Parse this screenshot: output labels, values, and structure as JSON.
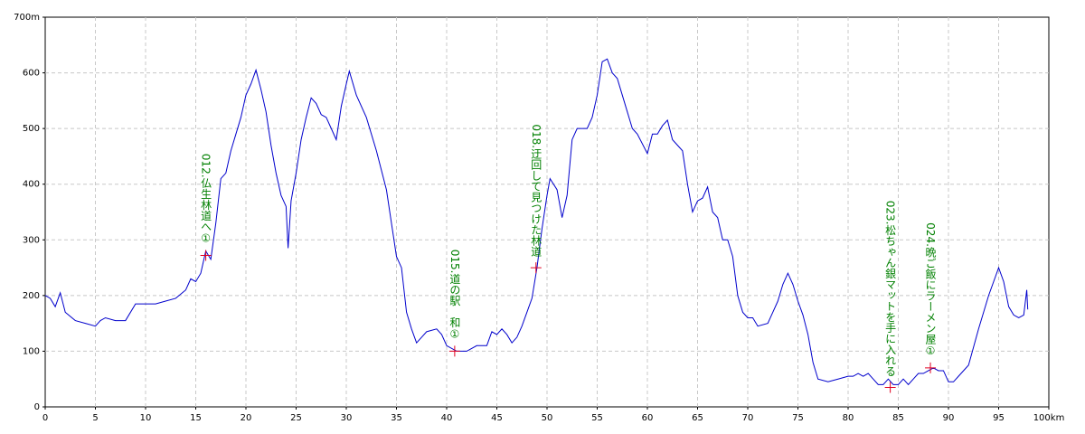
{
  "chart_data": {
    "type": "line",
    "x": [
      0,
      0.5,
      1,
      1.5,
      2,
      3,
      4,
      5,
      5.5,
      6,
      7,
      8,
      9,
      10,
      11,
      12,
      13,
      14,
      14.5,
      15,
      15.5,
      16,
      16.5,
      17,
      17.5,
      18,
      18.5,
      19,
      19.5,
      20,
      20.5,
      21,
      21.5,
      22,
      22.5,
      23,
      23.5,
      24,
      24.2,
      24.5,
      25,
      25.5,
      26,
      26.5,
      27,
      27.5,
      28,
      28.5,
      29,
      29.5,
      30,
      30.3,
      31,
      32,
      33,
      34,
      35,
      35.5,
      36,
      36.5,
      37,
      37.5,
      38,
      39,
      39.5,
      40,
      41,
      42,
      43,
      44,
      44.5,
      45,
      45.5,
      46,
      46.5,
      47,
      47.5,
      48,
      48.5,
      49,
      49.5,
      50,
      50.3,
      51,
      51.5,
      52,
      52.5,
      53,
      54,
      54.5,
      55,
      55.5,
      56,
      56.5,
      57,
      57.5,
      58,
      58.5,
      59,
      60,
      60.5,
      61,
      61.5,
      62,
      62.5,
      63,
      63.5,
      64,
      64.5,
      65,
      65.5,
      66,
      66.5,
      67,
      67.5,
      68,
      68.5,
      69,
      69.5,
      70,
      70.5,
      71,
      72,
      72.5,
      73,
      73.5,
      74,
      74.5,
      75,
      75.5,
      76,
      76.5,
      77,
      78,
      79,
      80,
      80.5,
      81,
      81.5,
      82,
      82.5,
      83,
      83.5,
      84,
      84.5,
      85,
      85.5,
      86,
      86.5,
      87,
      87.5,
      88,
      88.5,
      89,
      89.5,
      90,
      90.5,
      91,
      91.5,
      92,
      93,
      94,
      95,
      95.5,
      96,
      96.5,
      97,
      97.5,
      97.8,
      97.9
    ],
    "series": [
      {
        "color": "#0000cc",
        "values": [
          200,
          195,
          180,
          205,
          170,
          155,
          150,
          145,
          155,
          160,
          155,
          155,
          185,
          185,
          185,
          190,
          195,
          210,
          230,
          225,
          240,
          280,
          265,
          330,
          410,
          420,
          460,
          490,
          520,
          560,
          580,
          605,
          570,
          530,
          470,
          420,
          380,
          360,
          285,
          370,
          420,
          480,
          520,
          555,
          545,
          525,
          520,
          500,
          480,
          540,
          580,
          603,
          560,
          520,
          460,
          390,
          270,
          250,
          170,
          140,
          115,
          125,
          135,
          140,
          130,
          110,
          100,
          100,
          110,
          110,
          135,
          130,
          140,
          130,
          115,
          125,
          145,
          170,
          195,
          250,
          320,
          380,
          410,
          390,
          340,
          380,
          480,
          500,
          500,
          520,
          560,
          620,
          625,
          600,
          590,
          560,
          530,
          500,
          490,
          455,
          490,
          490,
          505,
          515,
          480,
          470,
          460,
          400,
          350,
          370,
          375,
          395,
          350,
          340,
          300,
          300,
          270,
          200,
          170,
          160,
          160,
          145,
          150,
          170,
          190,
          220,
          240,
          220,
          190,
          165,
          130,
          80,
          50,
          45,
          50,
          55,
          55,
          60,
          55,
          60,
          50,
          40,
          40,
          50,
          40,
          40,
          50,
          40,
          50,
          60,
          60,
          65,
          70,
          65,
          65,
          45,
          45,
          55,
          65,
          75,
          140,
          200,
          250,
          225,
          180,
          165,
          160,
          165,
          210,
          175
        ]
      }
    ],
    "xlim": [
      0,
      100
    ],
    "xticks": [
      0,
      5,
      10,
      15,
      20,
      25,
      30,
      35,
      40,
      45,
      50,
      55,
      60,
      65,
      70,
      75,
      80,
      85,
      90,
      95,
      {
        "value": 100,
        "label": "100km"
      }
    ],
    "ylim": [
      0,
      700
    ],
    "yticks": [
      0,
      100,
      200,
      300,
      400,
      500,
      600,
      {
        "value": 700,
        "label": "700m"
      }
    ],
    "grid": true,
    "annotations": [
      {
        "x": 16,
        "y": 272,
        "label": "012.仏生林道へ①"
      },
      {
        "x": 40.8,
        "y": 100,
        "label": "015.道の駅　和①"
      },
      {
        "x": 48.9,
        "y": 250,
        "label": "018.迂回して見つけた林道"
      },
      {
        "x": 84.2,
        "y": 35,
        "label": "023.松ちゃん銀マットを手に入れる"
      },
      {
        "x": 88.2,
        "y": 70,
        "label": "024.晩ご飯にラーメン屋①"
      }
    ]
  }
}
